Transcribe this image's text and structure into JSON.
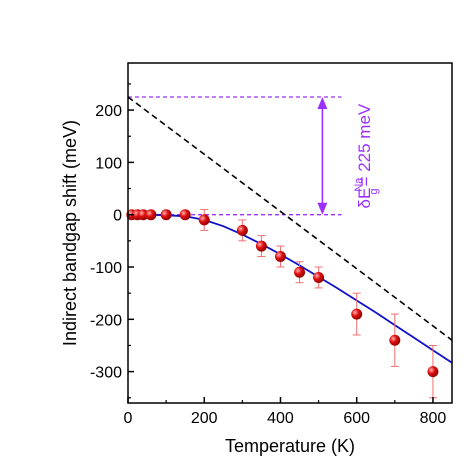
{
  "chart_data": {
    "type": "scatter",
    "xlabel": "Temperature (K)",
    "ylabel": "Indirect bandgap shift (meV)",
    "xlim": [
      0,
      850
    ],
    "ylim": [
      -360,
      290
    ],
    "xticks": [
      0,
      200,
      400,
      600,
      800
    ],
    "xtick_labels": [
      "0",
      "200",
      "400",
      "600",
      "800"
    ],
    "yticks": [
      -300,
      -200,
      -100,
      0,
      100,
      200
    ],
    "ytick_labels": [
      "-300",
      "-200",
      "-100",
      "0",
      "100",
      "200"
    ],
    "grid": false,
    "legend": "none",
    "series": [
      {
        "kind": "points_with_error_bars",
        "color": "#e01010",
        "points": [
          {
            "x": 10,
            "y": 0,
            "err": 0
          },
          {
            "x": 25,
            "y": 0,
            "err": 0
          },
          {
            "x": 40,
            "y": 0,
            "err": 0
          },
          {
            "x": 60,
            "y": 0,
            "err": 0
          },
          {
            "x": 100,
            "y": 0,
            "err": 0
          },
          {
            "x": 150,
            "y": 0,
            "err": 0
          },
          {
            "x": 200,
            "y": -10,
            "err": 20
          },
          {
            "x": 300,
            "y": -30,
            "err": 20
          },
          {
            "x": 350,
            "y": -60,
            "err": 20
          },
          {
            "x": 400,
            "y": -80,
            "err": 20
          },
          {
            "x": 450,
            "y": -110,
            "err": 20
          },
          {
            "x": 500,
            "y": -120,
            "err": 20
          },
          {
            "x": 600,
            "y": -190,
            "err": 40
          },
          {
            "x": 700,
            "y": -240,
            "err": 50
          },
          {
            "x": 800,
            "y": -300,
            "err": 50
          }
        ]
      },
      {
        "kind": "solid_curve",
        "color": "#1010c8",
        "x": [
          0,
          50,
          100,
          150,
          200,
          250,
          300,
          350,
          400,
          450,
          500,
          550,
          600,
          650,
          700,
          750,
          800,
          850
        ],
        "y": [
          0,
          0,
          -1,
          -3,
          -10,
          -22,
          -38,
          -56,
          -76,
          -97,
          -119,
          -141,
          -164,
          -187,
          -211,
          -235,
          -259,
          -283
        ]
      },
      {
        "kind": "dashed_line",
        "color": "#000000",
        "x": [
          0,
          850
        ],
        "y": [
          225,
          -240
        ]
      }
    ],
    "annotation": {
      "color": "#9b30ff",
      "upper_level": 225,
      "lower_level": 0,
      "line_x_range": [
        0,
        560
      ],
      "arrow_x": 510,
      "text_main": "δE",
      "text_sup": "Na",
      "text_sub": "g",
      "text_rest": "= 225 meV"
    }
  }
}
